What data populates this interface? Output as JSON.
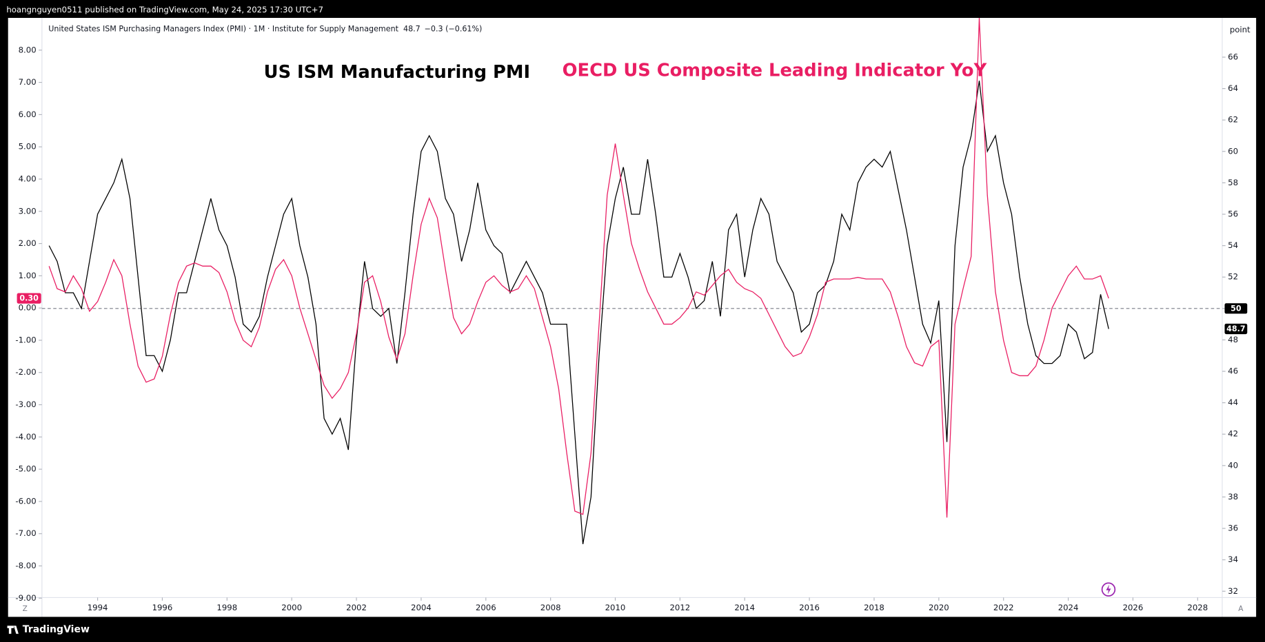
{
  "header": "hoangnguyen0511 published on TradingView.com, May 24, 2025 17:30 UTC+7",
  "footer": "TradingView",
  "chart_data": {
    "type": "line",
    "legend": "United States ISM Purchasing Managers Index (PMI) · 1M · Institute for Supply Management",
    "legend_value": "48.7",
    "legend_change": "−0.3 (−0.61%)",
    "annotations": [
      "US ISM Manufacturing PMI",
      "OECD US Composite Leading Indicator YoY"
    ],
    "y2_unit": "point",
    "corner_labels": [
      "Z",
      "A"
    ],
    "x": [
      1992.5,
      1992.75,
      1993,
      1993.25,
      1993.5,
      1993.75,
      1994,
      1994.25,
      1994.5,
      1994.75,
      1995,
      1995.25,
      1995.5,
      1995.75,
      1996,
      1996.25,
      1996.5,
      1996.75,
      1997,
      1997.25,
      1997.5,
      1997.75,
      1998,
      1998.25,
      1998.5,
      1998.75,
      1999,
      1999.25,
      1999.5,
      1999.75,
      2000,
      2000.25,
      2000.5,
      2000.75,
      2001,
      2001.25,
      2001.5,
      2001.75,
      2002,
      2002.25,
      2002.5,
      2002.75,
      2003,
      2003.25,
      2003.5,
      2003.75,
      2004,
      2004.25,
      2004.5,
      2004.75,
      2005,
      2005.25,
      2005.5,
      2005.75,
      2006,
      2006.25,
      2006.5,
      2006.75,
      2007,
      2007.25,
      2007.5,
      2007.75,
      2008,
      2008.25,
      2008.5,
      2008.75,
      2009,
      2009.25,
      2009.5,
      2009.75,
      2010,
      2010.25,
      2010.5,
      2010.75,
      2011,
      2011.25,
      2011.5,
      2011.75,
      2012,
      2012.25,
      2012.5,
      2012.75,
      2013,
      2013.25,
      2013.5,
      2013.75,
      2014,
      2014.25,
      2014.5,
      2014.75,
      2015,
      2015.25,
      2015.5,
      2015.75,
      2016,
      2016.25,
      2016.5,
      2016.75,
      2017,
      2017.25,
      2017.5,
      2017.75,
      2018,
      2018.25,
      2018.5,
      2018.75,
      2019,
      2019.25,
      2019.5,
      2019.75,
      2020,
      2020.25,
      2020.5,
      2020.75,
      2021,
      2021.25,
      2021.5,
      2021.75,
      2022,
      2022.25,
      2022.5,
      2022.75,
      2023,
      2023.25,
      2023.5,
      2023.75,
      2024,
      2024.25,
      2024.5,
      2024.75,
      2025,
      2025.25
    ],
    "series": [
      {
        "name": "United States ISM Purchasing Managers Index (PMI)",
        "color": "#000000",
        "axis": "y2",
        "values": [
          54,
          53,
          51,
          51,
          50,
          53,
          56,
          57,
          58,
          59.5,
          57,
          52,
          47,
          47,
          46,
          48,
          51,
          51,
          53,
          55,
          57,
          55,
          54,
          52,
          49,
          48.5,
          49.5,
          52,
          54,
          56,
          57,
          54,
          52,
          49,
          43,
          42,
          43,
          41,
          48,
          53,
          50,
          49.5,
          50,
          46.5,
          51,
          56,
          60,
          61,
          60,
          57,
          56,
          53,
          55,
          58,
          55,
          54,
          53.5,
          51,
          52,
          53,
          52,
          51,
          49,
          49,
          49,
          42,
          35,
          38,
          47,
          54,
          57,
          59,
          56,
          56,
          59.5,
          56,
          52,
          52,
          53.5,
          52,
          50,
          50.5,
          53,
          49.5,
          55,
          56,
          52,
          55,
          57,
          56,
          53,
          52,
          51,
          48.5,
          49,
          51,
          51.5,
          53,
          56,
          55,
          58,
          59,
          59.5,
          59,
          60,
          57.5,
          55,
          52,
          49,
          47.8,
          50.5,
          41.5,
          54,
          59,
          61,
          64.5,
          60,
          61,
          58,
          56,
          52,
          49,
          47,
          46.5,
          46.5,
          47,
          49,
          48.5,
          46.8,
          47.2,
          50.9,
          48.7
        ]
      },
      {
        "name": "OECD US Composite Leading Indicator YoY",
        "color": "#e91e63",
        "axis": "y",
        "values": [
          1.3,
          0.6,
          0.5,
          1.0,
          0.6,
          -0.1,
          0.2,
          0.8,
          1.5,
          1.0,
          -0.5,
          -1.8,
          -2.3,
          -2.2,
          -1.5,
          -0.2,
          0.8,
          1.3,
          1.4,
          1.3,
          1.3,
          1.1,
          0.5,
          -0.4,
          -1.0,
          -1.2,
          -0.6,
          0.5,
          1.2,
          1.5,
          1.0,
          0.0,
          -0.8,
          -1.6,
          -2.4,
          -2.8,
          -2.5,
          -2.0,
          -0.8,
          0.8,
          1.0,
          0.2,
          -0.9,
          -1.6,
          -0.8,
          1.0,
          2.6,
          3.4,
          2.8,
          1.2,
          -0.3,
          -0.8,
          -0.5,
          0.2,
          0.8,
          1.0,
          0.7,
          0.5,
          0.6,
          1.0,
          0.6,
          -0.3,
          -1.2,
          -2.5,
          -4.5,
          -6.3,
          -6.4,
          -4.5,
          -0.5,
          3.5,
          5.1,
          3.5,
          2.0,
          1.2,
          0.5,
          0.0,
          -0.5,
          -0.5,
          -0.3,
          0.0,
          0.5,
          0.4,
          0.7,
          1.0,
          1.2,
          0.8,
          0.6,
          0.5,
          0.3,
          -0.2,
          -0.7,
          -1.2,
          -1.5,
          -1.4,
          -0.9,
          -0.2,
          0.8,
          0.9,
          0.9,
          0.9,
          0.95,
          0.9,
          0.9,
          0.9,
          0.5,
          -0.3,
          -1.2,
          -1.7,
          -1.8,
          -1.2,
          -1.0,
          -6.5,
          -0.5,
          0.6,
          1.6,
          9.0,
          3.5,
          0.5,
          -1.0,
          -2.0,
          -2.1,
          -2.1,
          -1.8,
          -1.0,
          0.0,
          0.5,
          1.0,
          1.3,
          0.9,
          0.9,
          1.0,
          0.3
        ]
      }
    ],
    "xlim": [
      1992.28,
      2028.76
    ],
    "xticks": [
      1994,
      1996,
      1998,
      2000,
      2002,
      2004,
      2006,
      2008,
      2010,
      2012,
      2014,
      2016,
      2018,
      2020,
      2022,
      2024,
      2026,
      2028
    ],
    "ylim": [
      -8.98,
      9.0
    ],
    "yticks": [
      {
        "value": 8,
        "label": "8.00"
      },
      {
        "value": 7,
        "label": "7.00"
      },
      {
        "value": 6,
        "label": "6.00"
      },
      {
        "value": 5,
        "label": "5.00"
      },
      {
        "value": 4,
        "label": "4.00"
      },
      {
        "value": 3,
        "label": "3.00"
      },
      {
        "value": 2,
        "label": "2.00"
      },
      {
        "value": 1,
        "label": "1.00"
      },
      {
        "value": 0,
        "label": "0.00"
      },
      {
        "value": -1,
        "label": "-1.00"
      },
      {
        "value": -2,
        "label": "-2.00"
      },
      {
        "value": -3,
        "label": "-3.00"
      },
      {
        "value": -4,
        "label": "-4.00"
      },
      {
        "value": -5,
        "label": "-5.00"
      },
      {
        "value": -6,
        "label": "-6.00"
      },
      {
        "value": -7,
        "label": "-7.00"
      },
      {
        "value": -8,
        "label": "-8.00"
      },
      {
        "value": -9,
        "label": "-9.00"
      }
    ],
    "y2lim": [
      31.6,
      68.5
    ],
    "y2ticks": [
      32,
      34,
      36,
      38,
      40,
      42,
      44,
      46,
      48,
      50,
      52,
      54,
      56,
      58,
      60,
      62,
      64,
      66
    ],
    "reference_line": 50,
    "badges": [
      {
        "label": "0.30",
        "value": 0.3,
        "axis": "y",
        "color": "#e91e63"
      },
      {
        "label": "50",
        "value": 50,
        "axis": "y2",
        "color": "#000000"
      },
      {
        "label": "48.7",
        "value": 48.7,
        "axis": "y2",
        "color": "#000000"
      }
    ]
  }
}
